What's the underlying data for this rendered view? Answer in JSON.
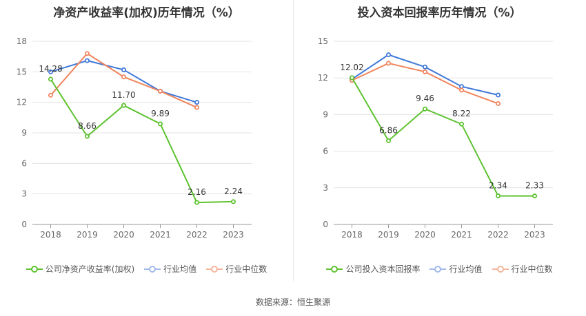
{
  "chart_data": [
    {
      "type": "line",
      "title": "净资产收益率(加权)历年情况（%）",
      "categories": [
        "2018",
        "2019",
        "2020",
        "2021",
        "2022",
        "2023"
      ],
      "ylim": [
        0,
        18
      ],
      "yticks": [
        0,
        3,
        6,
        9,
        12,
        15,
        18
      ],
      "series": [
        {
          "name": "公司净资产收益率(加权)",
          "color": "#5cc22e",
          "values": [
            14.28,
            8.66,
            11.7,
            9.89,
            2.16,
            2.24
          ],
          "labels": [
            "14.28",
            "8.66",
            "11.70",
            "9.89",
            "2.16",
            "2.24"
          ]
        },
        {
          "name": "行业均值",
          "color": "#3f78d9",
          "values": [
            15.0,
            16.1,
            15.2,
            13.1,
            12.0,
            null
          ]
        },
        {
          "name": "行业中位数",
          "color": "#f0845c",
          "values": [
            12.7,
            16.8,
            14.5,
            13.1,
            11.5,
            null
          ]
        }
      ]
    },
    {
      "type": "line",
      "title": "投入资本回报率历年情况（%）",
      "categories": [
        "2018",
        "2019",
        "2020",
        "2021",
        "2022",
        "2023"
      ],
      "ylim": [
        0,
        15
      ],
      "yticks": [
        0,
        3,
        6,
        9,
        12,
        15
      ],
      "series": [
        {
          "name": "公司投入资本回报率",
          "color": "#5cc22e",
          "values": [
            12.02,
            6.86,
            9.46,
            8.22,
            2.34,
            2.33
          ],
          "labels": [
            "12.02",
            "6.86",
            "9.46",
            "8.22",
            "2.34",
            "2.33"
          ]
        },
        {
          "name": "行业均值",
          "color": "#3f78d9",
          "values": [
            11.9,
            13.9,
            12.9,
            11.3,
            10.6,
            null
          ]
        },
        {
          "name": "行业中位数",
          "color": "#f0845c",
          "values": [
            11.8,
            13.2,
            12.5,
            11.0,
            9.9,
            null
          ]
        }
      ]
    }
  ],
  "footer": {
    "source": "数据来源：恒生聚源"
  }
}
